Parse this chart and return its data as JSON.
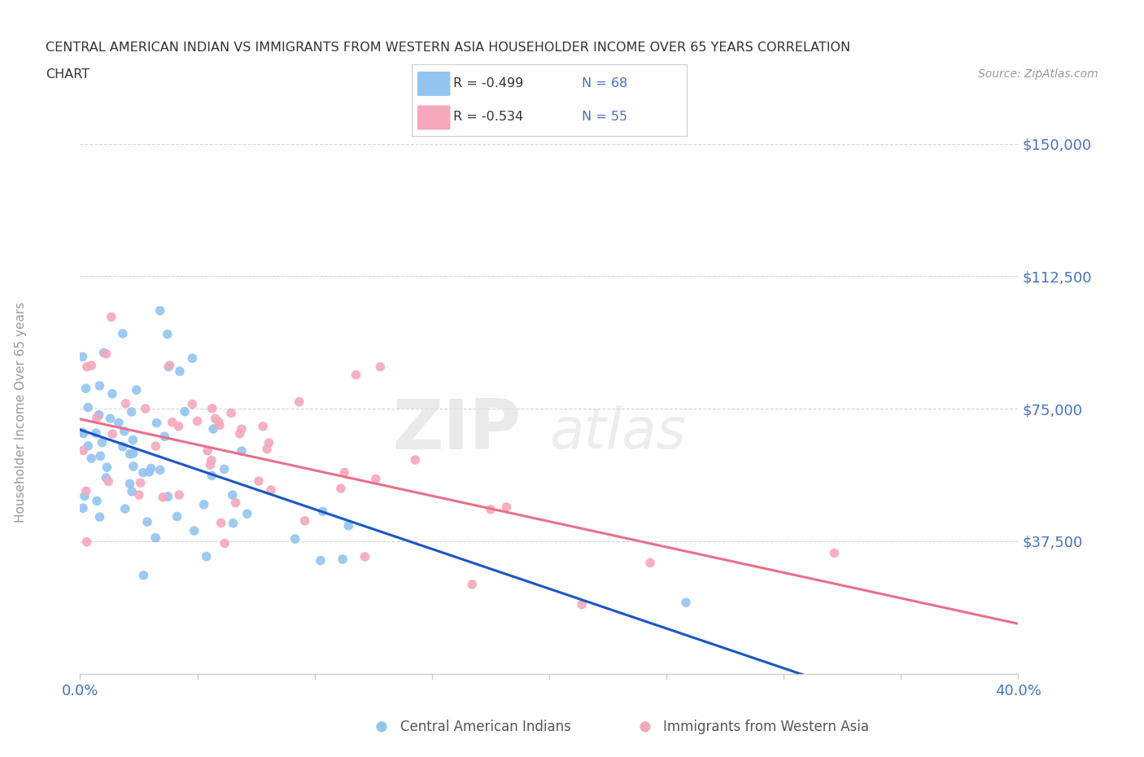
{
  "title_line1": "CENTRAL AMERICAN INDIAN VS IMMIGRANTS FROM WESTERN ASIA HOUSEHOLDER INCOME OVER 65 YEARS CORRELATION",
  "title_line2": "CHART",
  "source_text": "Source: ZipAtlas.com",
  "watermark_zip": "ZIP",
  "watermark_atlas": "atlas",
  "ylabel": "Householder Income Over 65 years",
  "xlim": [
    0.0,
    0.4
  ],
  "ylim": [
    0,
    150000
  ],
  "yticks": [
    0,
    37500,
    75000,
    112500,
    150000
  ],
  "xticks": [
    0.0,
    0.05,
    0.1,
    0.15,
    0.2,
    0.25,
    0.3,
    0.35,
    0.4
  ],
  "xtick_labels": [
    "0.0%",
    "",
    "",
    "",
    "",
    "",
    "",
    "",
    "40.0%"
  ],
  "blue_color": "#92C5F0",
  "pink_color": "#F5A8BC",
  "blue_line_color": "#1A56C4",
  "pink_line_color": "#E8708A",
  "R_blue": -0.499,
  "N_blue": 68,
  "R_pink": -0.534,
  "N_pink": 55,
  "axis_color": "#CCCCCC",
  "grid_color": "#CCCCCC",
  "tick_label_color": "#4472C4",
  "ylabel_color": "#999999",
  "background_color": "#FFFFFF",
  "title_color": "#333333",
  "source_color": "#999999",
  "legend_text_color": "#333333",
  "n_label_color": "#4472C4"
}
